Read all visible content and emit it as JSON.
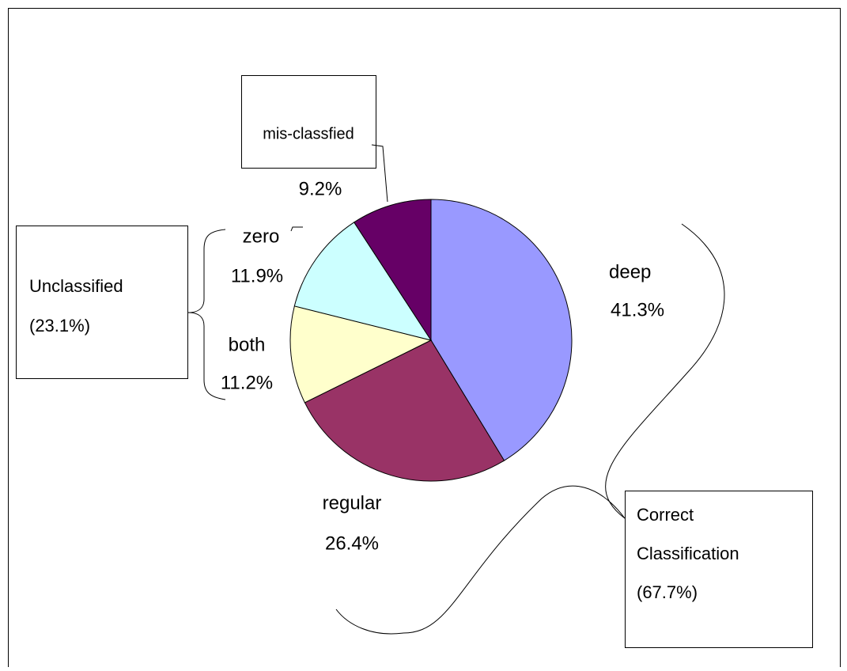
{
  "chart_data": {
    "type": "pie",
    "categories": [
      "deep",
      "regular",
      "both",
      "zero",
      "mis-classfied"
    ],
    "values": [
      41.3,
      26.4,
      11.2,
      11.9,
      9.2
    ],
    "value_labels": [
      "41.3%",
      "26.4%",
      "11.2%",
      "11.9%",
      "9.2%"
    ],
    "colors": [
      "#9999ff",
      "#993366",
      "#ffffcc",
      "#ccffff",
      "#660066"
    ],
    "annotations": [
      {
        "lines": [
          "Unclassified",
          "(23.1%)"
        ]
      },
      {
        "lines": [
          "Correct",
          "Classification",
          "(67.7%)"
        ]
      }
    ]
  }
}
